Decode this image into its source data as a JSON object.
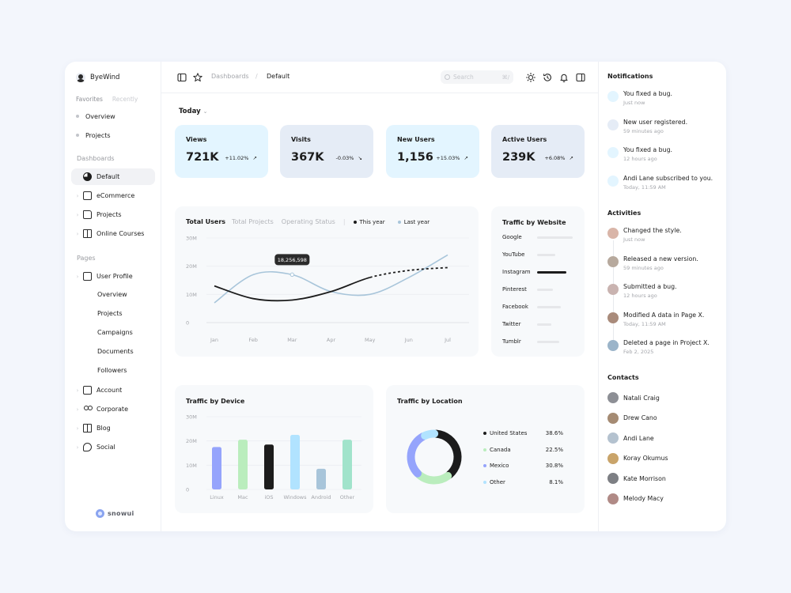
{
  "brand": {
    "name": "ByeWind"
  },
  "sidebar": {
    "tabs": {
      "favorites": "Favorites",
      "recently": "Recently"
    },
    "favorites": [
      "Overview",
      "Projects"
    ],
    "dashboards_label": "Dashboards",
    "dashboards": [
      {
        "label": "Default",
        "icon": "pie-chart-icon",
        "active": true
      },
      {
        "label": "eCommerce",
        "icon": "shopping-bag-icon"
      },
      {
        "label": "Projects",
        "icon": "folder-icon"
      },
      {
        "label": "Online Courses",
        "icon": "book-open-icon"
      }
    ],
    "pages_label": "Pages",
    "user_profile": {
      "label": "User Profile",
      "icon": "user-profile-icon"
    },
    "user_profile_sub": [
      "Overview",
      "Projects",
      "Campaigns",
      "Documents",
      "Followers"
    ],
    "pages": [
      {
        "label": "Account",
        "icon": "account-icon"
      },
      {
        "label": "Corporate",
        "icon": "users-icon"
      },
      {
        "label": "Blog",
        "icon": "blog-icon"
      },
      {
        "label": "Social",
        "icon": "chat-icon"
      }
    ],
    "logo": "snowui"
  },
  "header": {
    "breadcrumb": [
      "Dashboards",
      "Default"
    ],
    "breadcrumb_sep": "/",
    "search_placeholder": "Search",
    "search_shortcut": "⌘/"
  },
  "main": {
    "period": "Today",
    "stats": [
      {
        "title": "Views",
        "value": "721K",
        "change": "+11.02%",
        "bg": "#e3f5ff"
      },
      {
        "title": "Visits",
        "value": "367K",
        "change": "-0.03%",
        "bg": "#e5ecf6"
      },
      {
        "title": "New Users",
        "value": "1,156",
        "change": "+15.03%",
        "bg": "#e3f5ff"
      },
      {
        "title": "Active Users",
        "value": "239K",
        "change": "+6.08%",
        "bg": "#e5ecf6"
      }
    ],
    "users_tabs": [
      "Total Users",
      "Total Projects",
      "Operating Status"
    ],
    "users_tab_sep": "|",
    "legend": [
      "This year",
      "Last year"
    ],
    "tooltip": "18,256,598",
    "traffic_website": {
      "title": "Traffic by Website",
      "sites": [
        {
          "name": "Google",
          "level": 0.9
        },
        {
          "name": "YouTube",
          "level": 0.45
        },
        {
          "name": "Instagram",
          "level": 0.74
        },
        {
          "name": "Pinterest",
          "level": 0.4
        },
        {
          "name": "Facebook",
          "level": 0.6
        },
        {
          "name": "Twitter",
          "level": 0.35
        },
        {
          "name": "Tumblr",
          "level": 0.55
        }
      ]
    },
    "traffic_device_title": "Traffic by Device",
    "traffic_location_title": "Traffic by Location",
    "locations": [
      {
        "name": "United States",
        "pct": "38.6%",
        "value": 38.6,
        "color": "#1c1c1c"
      },
      {
        "name": "Canada",
        "pct": "22.5%",
        "value": 22.5,
        "color": "#baedbd"
      },
      {
        "name": "Mexico",
        "pct": "30.8%",
        "value": 30.8,
        "color": "#95a4fc"
      },
      {
        "name": "Other",
        "pct": "8.1%",
        "value": 8.1,
        "color": "#b1e3ff"
      }
    ]
  },
  "chart_data": [
    {
      "type": "line",
      "x": [
        "Jan",
        "Feb",
        "Mar",
        "Apr",
        "May",
        "Jun",
        "Jul"
      ],
      "ylim": [
        0,
        30
      ],
      "yticks": [
        "0",
        "10M",
        "20M",
        "30M"
      ],
      "series": [
        {
          "name": "This year",
          "values": [
            13,
            8.5,
            8,
            11,
            16,
            18.5,
            19.5
          ],
          "color": "#1c1c1c"
        },
        {
          "name": "Last year",
          "values": [
            7,
            17,
            17,
            11,
            10,
            16,
            24
          ],
          "color": "#a8c5da"
        }
      ]
    },
    {
      "type": "bar",
      "categories": [
        "Linux",
        "Mac",
        "iOS",
        "Windows",
        "Android",
        "Other"
      ],
      "values": [
        17.5,
        20.5,
        18.5,
        22.5,
        8.5,
        20.5
      ],
      "colors": [
        "#95a4fc",
        "#baedbd",
        "#1c1c1c",
        "#b1e3ff",
        "#a8c5da",
        "#a1e3cb"
      ],
      "ylim": [
        0,
        30
      ],
      "yticks": [
        "0",
        "10M",
        "20M",
        "30M"
      ]
    },
    {
      "type": "pie",
      "categories": [
        "United States",
        "Canada",
        "Mexico",
        "Other"
      ],
      "values": [
        38.6,
        22.5,
        30.8,
        8.1
      ]
    }
  ],
  "right": {
    "notifications_title": "Notifications",
    "notifications": [
      {
        "text": "You fixed a bug.",
        "time": "Just now",
        "icon": "bug-icon"
      },
      {
        "text": "New user registered.",
        "time": "59 minutes ago",
        "icon": "user-icon"
      },
      {
        "text": "You fixed a bug.",
        "time": "12 hours ago",
        "icon": "bug-icon"
      },
      {
        "text": "Andi Lane subscribed to you.",
        "time": "Today, 11:59 AM",
        "icon": "broadcast-icon"
      }
    ],
    "activities_title": "Activities",
    "activities": [
      {
        "text": "Changed the style.",
        "time": "Just now"
      },
      {
        "text": "Released a new version.",
        "time": "59 minutes ago"
      },
      {
        "text": "Submitted a bug.",
        "time": "12 hours ago"
      },
      {
        "text": "Modified A data in Page X.",
        "time": "Today, 11:59 AM"
      },
      {
        "text": "Deleted a page in Project X.",
        "time": "Feb 2, 2025"
      }
    ],
    "contacts_title": "Contacts",
    "contacts": [
      "Natali Craig",
      "Drew Cano",
      "Andi Lane",
      "Koray Okumus",
      "Kate Morrison",
      "Melody Macy"
    ]
  }
}
